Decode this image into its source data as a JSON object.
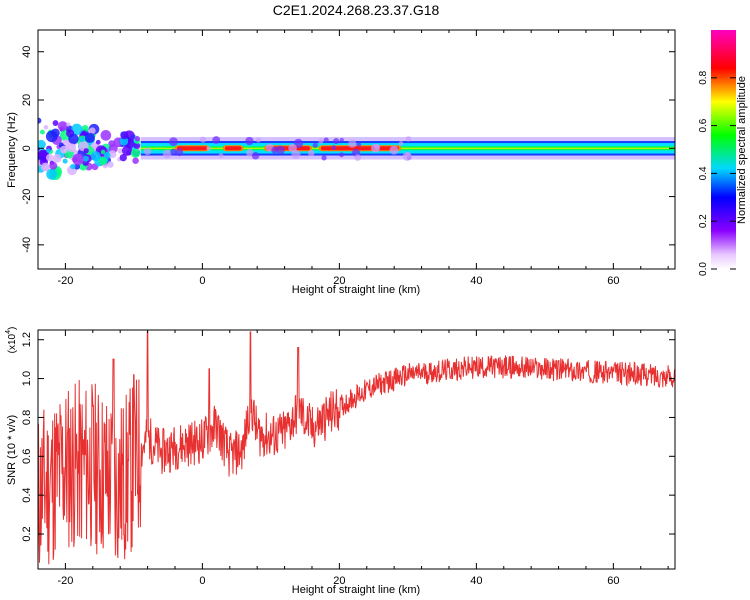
{
  "title": "C2E1.2024.268.23.37.G18",
  "chart_data": [
    {
      "type": "heatmap",
      "xlabel": "Height of straight line (km)",
      "ylabel": "Frequency (Hz)",
      "xlim": [
        -24,
        69
      ],
      "ylim": [
        -50,
        49
      ],
      "x_ticks": [
        "-20",
        "0",
        "20",
        "40",
        "60"
      ],
      "y_ticks": [
        "40",
        "20",
        "0",
        "-20",
        "-40"
      ],
      "colorbar": {
        "label": "Normalized spectral amplitude",
        "range": [
          0.0,
          1.0
        ],
        "ticks": [
          "0.0",
          "0.2",
          "0.4",
          "0.6",
          "0.8"
        ],
        "colormap": "rainbow (white-violet-blue-cyan-green-yellow-red-magenta)"
      },
      "features": {
        "band_center_hz": 0,
        "band_halfwidth_hz": 3,
        "scatter_region_x": [
          -24,
          -9
        ],
        "scatter_region_y": [
          -18,
          12
        ],
        "strong_segments_x": [
          [
            -4,
            1
          ],
          [
            3,
            6
          ],
          [
            9,
            16
          ],
          [
            17,
            29
          ]
        ]
      }
    },
    {
      "type": "line",
      "xlabel": "Height of straight line (km)",
      "ylabel": "SNR (10 * v/v)",
      "y_multiplier": "(x10",
      "y_multiplier_exp": "4",
      "xlim": [
        -24,
        69
      ],
      "ylim": [
        0.02,
        1.25
      ],
      "x_ticks": [
        "-20",
        "0",
        "20",
        "40",
        "60"
      ],
      "y_ticks": [
        "1.2",
        "1.0",
        "0.8",
        "0.6",
        "0.4",
        "0.2"
      ],
      "line_color": "#e83030",
      "trend_points": [
        [
          -24,
          0.4
        ],
        [
          -20,
          0.55
        ],
        [
          -16,
          0.55
        ],
        [
          -12,
          0.45
        ],
        [
          -10,
          0.55
        ],
        [
          -8,
          0.7
        ],
        [
          -6,
          0.62
        ],
        [
          -3,
          0.66
        ],
        [
          0,
          0.68
        ],
        [
          2,
          0.76
        ],
        [
          4,
          0.6
        ],
        [
          6,
          0.64
        ],
        [
          7,
          0.88
        ],
        [
          8,
          0.72
        ],
        [
          10,
          0.7
        ],
        [
          12,
          0.72
        ],
        [
          14,
          0.84
        ],
        [
          16,
          0.74
        ],
        [
          18,
          0.8
        ],
        [
          22,
          0.9
        ],
        [
          25,
          0.96
        ],
        [
          30,
          1.02
        ],
        [
          35,
          1.04
        ],
        [
          40,
          1.06
        ],
        [
          45,
          1.06
        ],
        [
          50,
          1.05
        ],
        [
          55,
          1.04
        ],
        [
          60,
          1.03
        ],
        [
          65,
          1.02
        ],
        [
          69,
          1.01
        ]
      ],
      "spikes": [
        [
          -8,
          1.24
        ],
        [
          7,
          1.24
        ],
        [
          14,
          1.16
        ],
        [
          1,
          1.05
        ],
        [
          -13,
          1.1
        ],
        [
          -10,
          1.02
        ]
      ]
    }
  ]
}
